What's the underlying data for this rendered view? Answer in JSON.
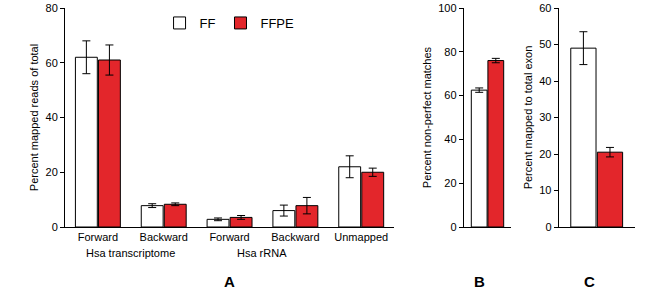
{
  "chart_data": [
    {
      "type": "bar",
      "title": "A",
      "y_label": "Percent mapped reads of total",
      "categories": [
        "Forward",
        "Backward",
        "Forward",
        "Backward",
        "Unmapped"
      ],
      "annotations": [
        {
          "text": "Hsa transcriptome",
          "x": [
            0,
            1
          ]
        },
        {
          "text": "Hsa rRNA",
          "x": [
            2,
            3
          ]
        }
      ],
      "series": [
        {
          "name": "FF",
          "color": "#ffffff",
          "values": [
            62,
            7.8,
            2.8,
            6,
            22
          ],
          "errors": [
            6,
            0.7,
            0.5,
            2,
            4
          ]
        },
        {
          "name": "FFPE",
          "color": "#e3262b",
          "values": [
            61,
            8.3,
            3.5,
            7.8,
            20
          ],
          "errors": [
            5.5,
            0.5,
            0.7,
            3,
            1.5
          ]
        }
      ],
      "ylim": [
        0,
        80
      ],
      "yticks": [
        0,
        20,
        40,
        60,
        80
      ],
      "grid": false,
      "legend": "top"
    },
    {
      "type": "bar",
      "title": "B",
      "y_label": "Percent non-perfect matches",
      "categories": [
        null
      ],
      "series": [
        {
          "name": "FF",
          "color": "#ffffff",
          "values": [
            62.5
          ],
          "errors": [
            1
          ]
        },
        {
          "name": "FFPE",
          "color": "#e3262b",
          "values": [
            76
          ],
          "errors": [
            1
          ]
        }
      ],
      "ylim": [
        0,
        100
      ],
      "yticks": [
        0,
        20,
        40,
        60,
        80,
        100
      ],
      "grid": false,
      "tick_labels": "y"
    },
    {
      "type": "bar",
      "title": "C",
      "y_label": "Percent mapped to total exon",
      "categories": [
        null
      ],
      "series": [
        {
          "name": "FF",
          "color": "#ffffff",
          "values": [
            49
          ],
          "errors": [
            4.5
          ]
        },
        {
          "name": "FFPE",
          "color": "#e3262b",
          "values": [
            20.5
          ],
          "errors": [
            1.3
          ]
        }
      ],
      "ylim": [
        0,
        60
      ],
      "yticks": [
        0,
        10,
        20,
        30,
        40,
        50,
        60
      ],
      "grid": false,
      "tick_labels": "y"
    }
  ]
}
